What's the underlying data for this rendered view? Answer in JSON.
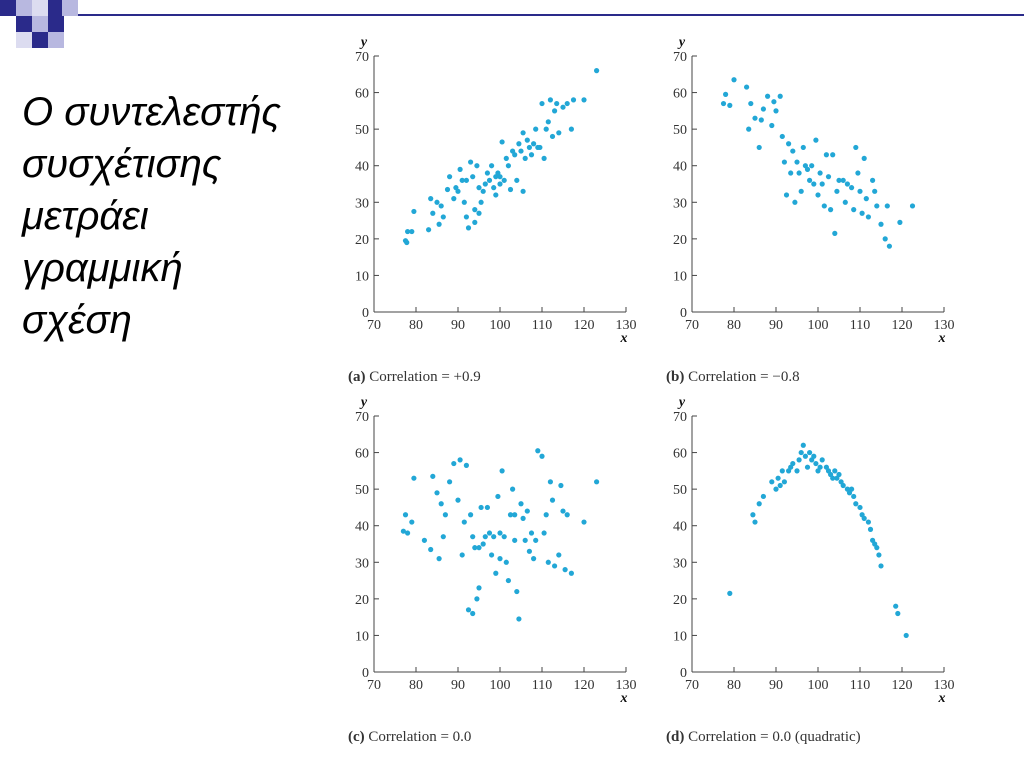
{
  "slide": {
    "title_lines": [
      "Ο συντελεστής",
      "συσχέτισης",
      "μετράει",
      "γραμμική",
      "σχέση"
    ]
  },
  "colors": {
    "points": "#22a7d6",
    "decor_dark": "#2a2a8a",
    "decor_light": "#b8b8e0"
  },
  "chart_data": [
    {
      "type": "scatter",
      "caption_label": "(a)",
      "caption_text": "Correlation = +0.9",
      "xlabel": "x",
      "ylabel": "y",
      "xlim": [
        70,
        130
      ],
      "ylim": [
        0,
        70
      ],
      "xticks": [
        70,
        80,
        90,
        100,
        110,
        120,
        130
      ],
      "yticks": [
        0,
        10,
        20,
        30,
        40,
        50,
        60,
        70
      ],
      "points": [
        [
          77.5,
          19.5
        ],
        [
          77.8,
          19
        ],
        [
          78,
          22
        ],
        [
          79,
          22
        ],
        [
          79.5,
          27.5
        ],
        [
          83,
          22.5
        ],
        [
          83.5,
          31
        ],
        [
          84,
          27
        ],
        [
          85,
          30
        ],
        [
          85.5,
          24
        ],
        [
          86,
          29
        ],
        [
          86.5,
          26
        ],
        [
          87.5,
          33.5
        ],
        [
          88,
          37
        ],
        [
          89,
          31
        ],
        [
          89.5,
          34
        ],
        [
          90,
          33
        ],
        [
          90.5,
          39
        ],
        [
          91,
          36
        ],
        [
          91.5,
          30
        ],
        [
          92,
          36
        ],
        [
          92,
          26
        ],
        [
          92.5,
          23
        ],
        [
          93,
          41
        ],
        [
          93.5,
          37
        ],
        [
          94,
          24.5
        ],
        [
          94.5,
          40
        ],
        [
          94,
          28
        ],
        [
          95,
          27
        ],
        [
          95,
          34
        ],
        [
          95.5,
          30
        ],
        [
          96,
          33
        ],
        [
          96.5,
          35
        ],
        [
          97,
          38
        ],
        [
          97.5,
          36
        ],
        [
          98,
          40
        ],
        [
          98.5,
          34
        ],
        [
          99,
          37
        ],
        [
          99,
          32
        ],
        [
          99.5,
          38
        ],
        [
          100,
          37
        ],
        [
          100.5,
          46.5
        ],
        [
          100,
          35
        ],
        [
          101,
          36
        ],
        [
          101.5,
          42
        ],
        [
          102,
          40
        ],
        [
          102.5,
          33.5
        ],
        [
          103,
          44
        ],
        [
          103.5,
          43
        ],
        [
          104,
          36
        ],
        [
          104.5,
          46
        ],
        [
          105,
          44
        ],
        [
          105.5,
          49
        ],
        [
          105.5,
          33
        ],
        [
          106,
          42
        ],
        [
          106.5,
          47
        ],
        [
          107,
          45
        ],
        [
          107.5,
          43
        ],
        [
          108,
          46
        ],
        [
          108.5,
          50
        ],
        [
          109,
          45
        ],
        [
          109.5,
          45
        ],
        [
          110,
          57
        ],
        [
          110.5,
          42
        ],
        [
          111,
          50
        ],
        [
          111.5,
          52
        ],
        [
          112,
          58
        ],
        [
          112.5,
          48
        ],
        [
          113,
          55
        ],
        [
          113.5,
          57
        ],
        [
          114,
          49
        ],
        [
          115,
          56
        ],
        [
          116,
          57
        ],
        [
          117,
          50
        ],
        [
          117.5,
          58
        ],
        [
          120,
          58
        ],
        [
          123,
          66
        ]
      ]
    },
    {
      "type": "scatter",
      "caption_label": "(b)",
      "caption_text": "Correlation = −0.8",
      "xlabel": "x",
      "ylabel": "y",
      "xlim": [
        70,
        130
      ],
      "ylim": [
        0,
        70
      ],
      "xticks": [
        70,
        80,
        90,
        100,
        110,
        120,
        130
      ],
      "yticks": [
        0,
        10,
        20,
        30,
        40,
        50,
        60,
        70
      ],
      "points": [
        [
          77.5,
          57
        ],
        [
          78,
          59.5
        ],
        [
          79,
          56.5
        ],
        [
          80,
          63.5
        ],
        [
          83,
          61.5
        ],
        [
          83.5,
          50
        ],
        [
          84,
          57
        ],
        [
          85,
          53
        ],
        [
          86,
          45
        ],
        [
          86.5,
          52.5
        ],
        [
          87,
          55.5
        ],
        [
          88,
          59
        ],
        [
          89,
          51
        ],
        [
          89.5,
          57.5
        ],
        [
          90,
          55
        ],
        [
          91,
          59
        ],
        [
          91.5,
          48
        ],
        [
          92,
          41
        ],
        [
          92.5,
          32
        ],
        [
          93,
          46
        ],
        [
          93.5,
          38
        ],
        [
          94,
          44
        ],
        [
          94.5,
          30
        ],
        [
          95,
          41
        ],
        [
          95.5,
          38
        ],
        [
          96,
          33
        ],
        [
          96.5,
          45
        ],
        [
          97,
          40
        ],
        [
          97.5,
          39
        ],
        [
          98,
          36
        ],
        [
          98.5,
          40
        ],
        [
          99,
          35
        ],
        [
          99.5,
          47
        ],
        [
          100,
          32
        ],
        [
          100.5,
          38
        ],
        [
          101,
          35
        ],
        [
          101.5,
          29
        ],
        [
          102,
          43
        ],
        [
          102.5,
          37
        ],
        [
          103,
          28
        ],
        [
          103.5,
          43
        ],
        [
          104,
          21.5
        ],
        [
          104.5,
          33
        ],
        [
          105,
          36
        ],
        [
          106,
          36
        ],
        [
          106.5,
          30
        ],
        [
          107,
          35
        ],
        [
          108,
          34
        ],
        [
          108.5,
          28
        ],
        [
          109,
          45
        ],
        [
          109.5,
          38
        ],
        [
          110,
          33
        ],
        [
          110.5,
          27
        ],
        [
          111,
          42
        ],
        [
          111.5,
          31
        ],
        [
          112,
          26
        ],
        [
          113,
          36
        ],
        [
          113.5,
          33
        ],
        [
          114,
          29
        ],
        [
          115,
          24
        ],
        [
          116,
          20
        ],
        [
          116.5,
          29
        ],
        [
          117,
          18
        ],
        [
          119.5,
          24.5
        ],
        [
          122.5,
          29
        ]
      ]
    },
    {
      "type": "scatter",
      "caption_label": "(c)",
      "caption_text": "Correlation = 0.0",
      "xlabel": "x",
      "ylabel": "y",
      "xlim": [
        70,
        130
      ],
      "ylim": [
        0,
        70
      ],
      "xticks": [
        70,
        80,
        90,
        100,
        110,
        120,
        130
      ],
      "yticks": [
        0,
        10,
        20,
        30,
        40,
        50,
        60,
        70
      ],
      "points": [
        [
          77,
          38.5
        ],
        [
          77.5,
          43
        ],
        [
          78,
          38
        ],
        [
          79,
          41
        ],
        [
          79.5,
          53
        ],
        [
          82,
          36
        ],
        [
          83.5,
          33.5
        ],
        [
          84,
          53.5
        ],
        [
          85,
          49
        ],
        [
          85.5,
          31
        ],
        [
          86,
          46
        ],
        [
          86.5,
          37
        ],
        [
          87,
          43
        ],
        [
          88,
          52
        ],
        [
          89,
          57
        ],
        [
          90,
          47
        ],
        [
          90.5,
          58
        ],
        [
          91,
          32
        ],
        [
          91.5,
          41
        ],
        [
          92,
          56.5
        ],
        [
          92.5,
          17
        ],
        [
          93,
          43
        ],
        [
          93.5,
          16
        ],
        [
          93.5,
          37
        ],
        [
          94,
          34
        ],
        [
          94.5,
          20
        ],
        [
          95,
          23
        ],
        [
          95.5,
          45
        ],
        [
          95,
          34
        ],
        [
          96,
          35
        ],
        [
          96.5,
          37
        ],
        [
          97,
          45
        ],
        [
          97.5,
          38
        ],
        [
          98,
          32
        ],
        [
          98.5,
          37
        ],
        [
          99,
          27
        ],
        [
          99.5,
          48
        ],
        [
          100,
          38
        ],
        [
          100.5,
          55
        ],
        [
          100,
          31
        ],
        [
          101,
          37
        ],
        [
          101.5,
          30
        ],
        [
          102,
          25
        ],
        [
          102.5,
          43
        ],
        [
          103,
          50
        ],
        [
          103.5,
          43
        ],
        [
          103.5,
          36
        ],
        [
          104,
          22
        ],
        [
          104.5,
          14.5
        ],
        [
          105,
          46
        ],
        [
          105.5,
          42
        ],
        [
          106,
          36
        ],
        [
          106.5,
          44
        ],
        [
          107,
          33
        ],
        [
          107.5,
          38
        ],
        [
          108,
          31
        ],
        [
          108.5,
          36
        ],
        [
          109,
          60.5
        ],
        [
          110,
          59
        ],
        [
          110.5,
          38
        ],
        [
          111,
          43
        ],
        [
          111.5,
          30
        ],
        [
          112,
          52
        ],
        [
          112.5,
          47
        ],
        [
          113,
          29
        ],
        [
          114,
          32
        ],
        [
          114.5,
          51
        ],
        [
          115,
          44
        ],
        [
          115.5,
          28
        ],
        [
          116,
          43
        ],
        [
          117,
          27
        ],
        [
          120,
          41
        ],
        [
          123,
          52
        ]
      ]
    },
    {
      "type": "scatter",
      "caption_label": "(d)",
      "caption_text": "Correlation = 0.0 (quadratic)",
      "xlabel": "x",
      "ylabel": "y",
      "xlim": [
        70,
        130
      ],
      "ylim": [
        0,
        70
      ],
      "xticks": [
        70,
        80,
        90,
        100,
        110,
        120,
        130
      ],
      "yticks": [
        0,
        10,
        20,
        30,
        40,
        50,
        60,
        70
      ],
      "points": [
        [
          79,
          21.5
        ],
        [
          84.5,
          43
        ],
        [
          85,
          41
        ],
        [
          86,
          46
        ],
        [
          87,
          48
        ],
        [
          89,
          52
        ],
        [
          90,
          50
        ],
        [
          90.5,
          53
        ],
        [
          91,
          51
        ],
        [
          91.5,
          55
        ],
        [
          92,
          52
        ],
        [
          93,
          55
        ],
        [
          93.5,
          56
        ],
        [
          94,
          57
        ],
        [
          95,
          55
        ],
        [
          95.5,
          58
        ],
        [
          96,
          60
        ],
        [
          96.5,
          62
        ],
        [
          97,
          59
        ],
        [
          97.5,
          56
        ],
        [
          98,
          60
        ],
        [
          98.5,
          58
        ],
        [
          99,
          59
        ],
        [
          99.5,
          57
        ],
        [
          100,
          55
        ],
        [
          100.5,
          56
        ],
        [
          101,
          58
        ],
        [
          102,
          56
        ],
        [
          102.5,
          55
        ],
        [
          103,
          54
        ],
        [
          103.5,
          53
        ],
        [
          104,
          55
        ],
        [
          104.5,
          53
        ],
        [
          105,
          54
        ],
        [
          105.5,
          52
        ],
        [
          106,
          51
        ],
        [
          107,
          50
        ],
        [
          107.5,
          49
        ],
        [
          108,
          50
        ],
        [
          108.5,
          48
        ],
        [
          109,
          46
        ],
        [
          110,
          45
        ],
        [
          110.5,
          43
        ],
        [
          111,
          42
        ],
        [
          112,
          41
        ],
        [
          112.5,
          39
        ],
        [
          113,
          36
        ],
        [
          113.5,
          35
        ],
        [
          114,
          34
        ],
        [
          114.5,
          32
        ],
        [
          115,
          29
        ],
        [
          118.5,
          18
        ],
        [
          119,
          16
        ],
        [
          121,
          10
        ]
      ]
    }
  ]
}
